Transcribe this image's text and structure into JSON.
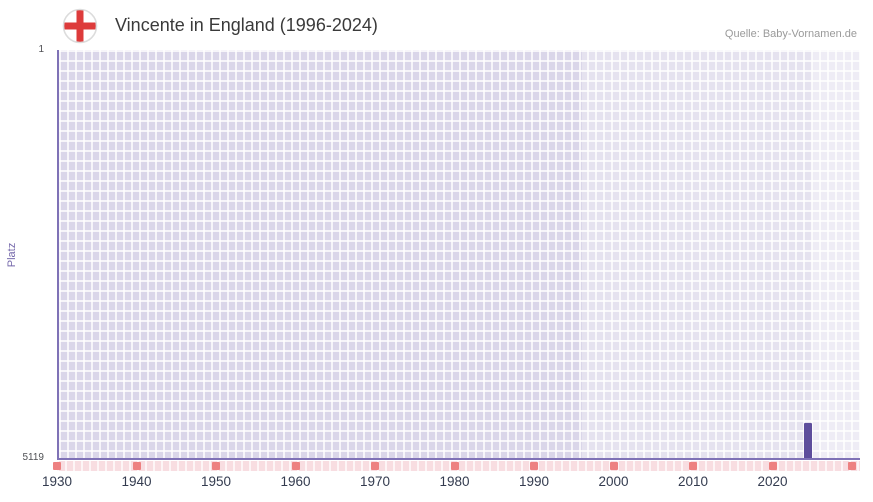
{
  "header": {
    "title": "Vincente in England (1996-2024)",
    "source": "Quelle: Baby-Vornamen.de"
  },
  "icons": {
    "flag": "england-flag-icon"
  },
  "chart_data": {
    "type": "bar",
    "title": "Vincente in England (1996-2024)",
    "source": "Quelle: Baby-Vornamen.de",
    "ylabel": "Platz",
    "y_axis": {
      "min": 1,
      "max": 5119,
      "inverted": true,
      "tick_top": "1",
      "tick_bottom": "5119"
    },
    "x_axis": {
      "range": [
        1930,
        2031
      ],
      "ticks": [
        "1930",
        "1940",
        "1950",
        "1960",
        "1970",
        "1980",
        "1990",
        "2000",
        "2010",
        "2020"
      ]
    },
    "data_period": {
      "start": 1996,
      "end": 2024
    },
    "strip_marker_years": [
      1930,
      1940,
      1950,
      1960,
      1970,
      1980,
      1990,
      2000,
      2010,
      2020,
      2030
    ],
    "series": [
      {
        "name": "Vincente",
        "points": [
          {
            "year": 2024,
            "rank": 4680
          }
        ]
      }
    ],
    "grid": true,
    "legend": "none",
    "colors": {
      "bar": "#5e4e9c",
      "axis": "#7f72b6",
      "plot_bg": "#dad6e9",
      "grid_line": "#ffffff",
      "strip_bg": "#f8dde1",
      "strip_marker": "#ed8181",
      "flag_red": "#dd3b3b",
      "ylabel_color": "#7568ab"
    }
  }
}
